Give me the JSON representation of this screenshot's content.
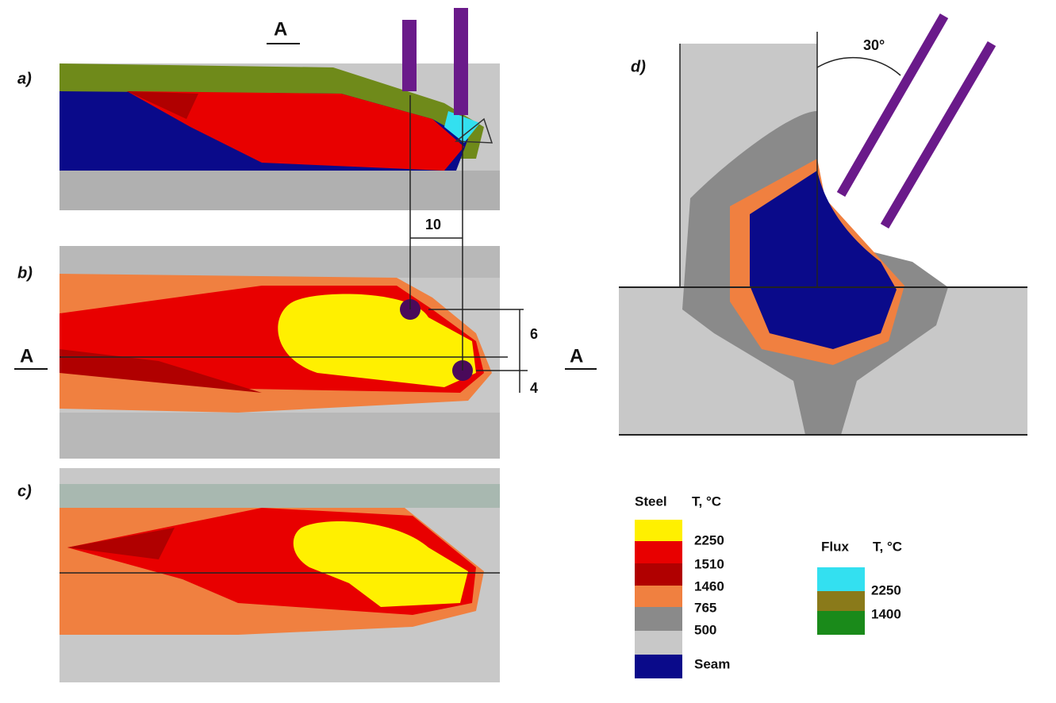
{
  "panels": {
    "a": "a)",
    "b": "b)",
    "c": "c)",
    "d": "d)"
  },
  "section_marks": [
    "A",
    "A",
    "A"
  ],
  "dimensions": {
    "spacing": "10",
    "upper": "6",
    "lower": "4",
    "angle": "30°"
  },
  "legend": {
    "steel": {
      "title": "Steel",
      "unit": "T, °C",
      "levels": [
        "2250",
        "1510",
        "1460",
        "765",
        "500"
      ],
      "seam": "Seam"
    },
    "flux": {
      "title": "Flux",
      "unit": "T, °C",
      "levels": [
        "2250",
        "1400"
      ]
    }
  }
}
